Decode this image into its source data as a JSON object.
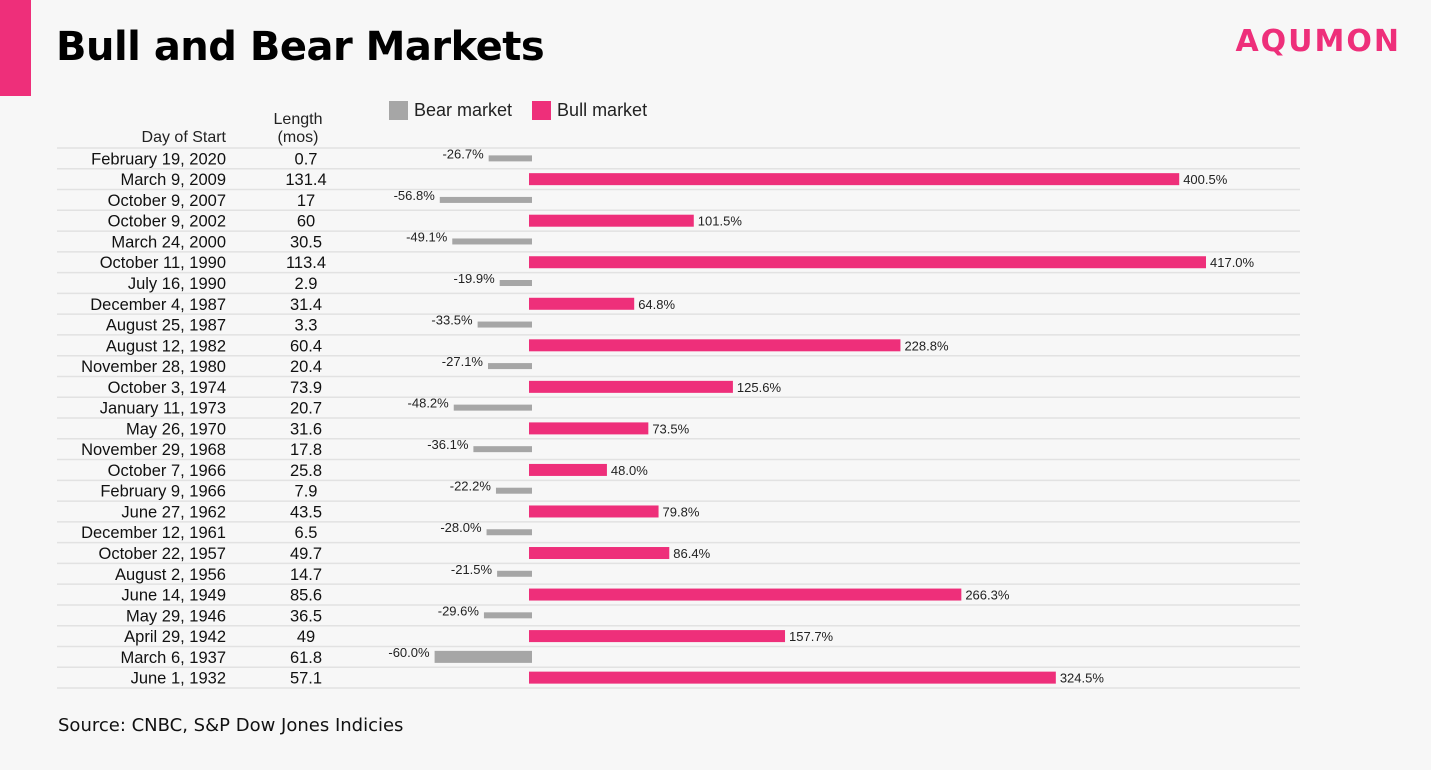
{
  "title": "Bull and Bear Markets",
  "brand": "AQUMON",
  "source": "Source: CNBC, S&P Dow Jones Indicies",
  "colors": {
    "bear": "#a6a6a6",
    "bull": "#ee2f7a",
    "accent": "#ee2f7a"
  },
  "chart_data": {
    "type": "bar",
    "orientation": "horizontal",
    "column_headers": {
      "day_of_start": "Day of Start",
      "length_line1": "Length",
      "length_line2": "(mos)"
    },
    "legend": [
      "Bear market",
      "Bull market"
    ],
    "rows": [
      {
        "date": "February 19, 2020",
        "length": "0.7",
        "type": "bear",
        "value": -26.7,
        "label": "-26.7%"
      },
      {
        "date": "March 9, 2009",
        "length": "131.4",
        "type": "bull",
        "value": 400.5,
        "label": "400.5%"
      },
      {
        "date": "October 9, 2007",
        "length": "17",
        "type": "bear",
        "value": -56.8,
        "label": "-56.8%"
      },
      {
        "date": "October 9, 2002",
        "length": "60",
        "type": "bull",
        "value": 101.5,
        "label": "101.5%"
      },
      {
        "date": "March 24, 2000",
        "length": "30.5",
        "type": "bear",
        "value": -49.1,
        "label": "-49.1%"
      },
      {
        "date": "October 11, 1990",
        "length": "113.4",
        "type": "bull",
        "value": 417.0,
        "label": "417.0%"
      },
      {
        "date": "July 16, 1990",
        "length": "2.9",
        "type": "bear",
        "value": -19.9,
        "label": "-19.9%"
      },
      {
        "date": "December 4, 1987",
        "length": "31.4",
        "type": "bull",
        "value": 64.8,
        "label": "64.8%"
      },
      {
        "date": "August 25, 1987",
        "length": "3.3",
        "type": "bear",
        "value": -33.5,
        "label": "-33.5%"
      },
      {
        "date": "August 12, 1982",
        "length": "60.4",
        "type": "bull",
        "value": 228.8,
        "label": "228.8%"
      },
      {
        "date": "November 28, 1980",
        "length": "20.4",
        "type": "bear",
        "value": -27.1,
        "label": "-27.1%"
      },
      {
        "date": "October 3, 1974",
        "length": "73.9",
        "type": "bull",
        "value": 125.6,
        "label": "125.6%"
      },
      {
        "date": "January 11, 1973",
        "length": "20.7",
        "type": "bear",
        "value": -48.2,
        "label": "-48.2%"
      },
      {
        "date": "May 26, 1970",
        "length": "31.6",
        "type": "bull",
        "value": 73.5,
        "label": "73.5%"
      },
      {
        "date": "November 29, 1968",
        "length": "17.8",
        "type": "bear",
        "value": -36.1,
        "label": "-36.1%"
      },
      {
        "date": "October 7, 1966",
        "length": "25.8",
        "type": "bull",
        "value": 48.0,
        "label": "48.0%"
      },
      {
        "date": "February 9, 1966",
        "length": "7.9",
        "type": "bear",
        "value": -22.2,
        "label": "-22.2%"
      },
      {
        "date": "June 27, 1962",
        "length": "43.5",
        "type": "bull",
        "value": 79.8,
        "label": "79.8%"
      },
      {
        "date": "December 12, 1961",
        "length": "6.5",
        "type": "bear",
        "value": -28.0,
        "label": "-28.0%"
      },
      {
        "date": "October 22, 1957",
        "length": "49.7",
        "type": "bull",
        "value": 86.4,
        "label": "86.4%"
      },
      {
        "date": "August 2, 1956",
        "length": "14.7",
        "type": "bear",
        "value": -21.5,
        "label": "-21.5%"
      },
      {
        "date": "June 14, 1949",
        "length": "85.6",
        "type": "bull",
        "value": 266.3,
        "label": "266.3%"
      },
      {
        "date": "May 29, 1946",
        "length": "36.5",
        "type": "bear",
        "value": -29.6,
        "label": "-29.6%"
      },
      {
        "date": "April 29, 1942",
        "length": "49",
        "type": "bull",
        "value": 157.7,
        "label": "157.7%"
      },
      {
        "date": "March 6, 1937",
        "length": "61.8",
        "type": "bear",
        "value": -60.0,
        "label": "-60.0%"
      },
      {
        "date": "June 1, 1932",
        "length": "57.1",
        "type": "bull",
        "value": 324.5,
        "label": "324.5%"
      }
    ]
  }
}
